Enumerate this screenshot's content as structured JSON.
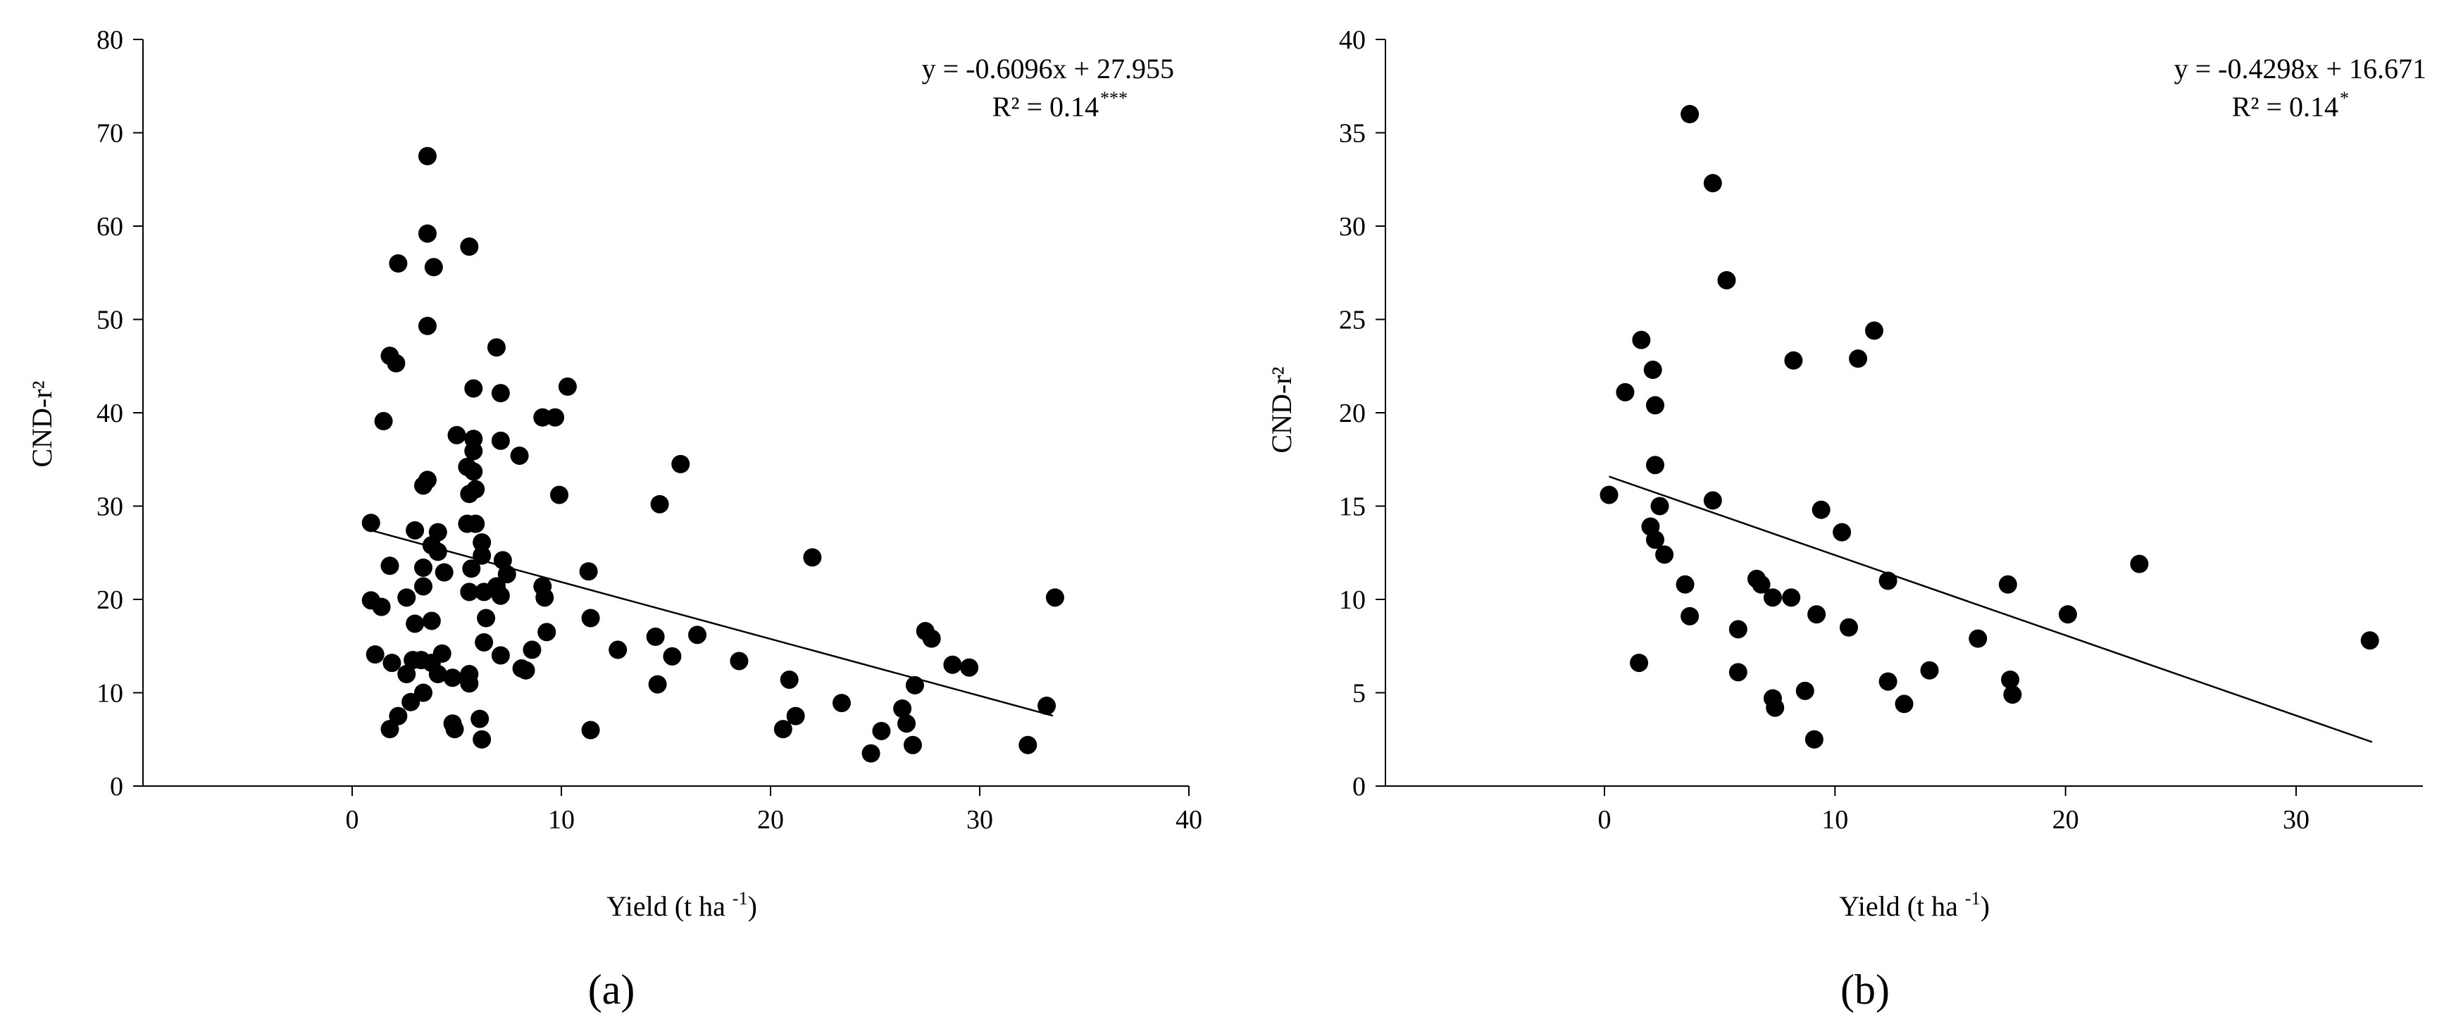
{
  "chart_data": [
    {
      "type": "scatter",
      "panel_label": "(a)",
      "xlabel": "Yield (t ha-1)",
      "ylabel": "CND-r²",
      "xlim": [
        -10,
        40
      ],
      "ylim": [
        0,
        80
      ],
      "xticks": [
        0,
        10,
        20,
        30,
        40
      ],
      "yticks": [
        0,
        10,
        20,
        30,
        40,
        50,
        60,
        70,
        80
      ],
      "equation": "y = -0.6096x + 27.955",
      "r2": "R² = 0.14",
      "r2_sig": "***",
      "trendline": {
        "slope": -0.6096,
        "intercept": 27.955,
        "x_range": [
          0.8,
          33.5
        ]
      },
      "points": [
        [
          3.6,
          67.5
        ],
        [
          3.6,
          59.2
        ],
        [
          5.6,
          57.8
        ],
        [
          2.2,
          56.0
        ],
        [
          3.9,
          55.6
        ],
        [
          3.6,
          49.3
        ],
        [
          6.9,
          47.0
        ],
        [
          1.8,
          46.1
        ],
        [
          2.1,
          45.3
        ],
        [
          5.8,
          42.6
        ],
        [
          7.1,
          42.1
        ],
        [
          10.3,
          42.8
        ],
        [
          9.1,
          39.5
        ],
        [
          9.7,
          39.5
        ],
        [
          1.5,
          39.1
        ],
        [
          5.0,
          37.6
        ],
        [
          5.8,
          37.2
        ],
        [
          7.1,
          37.0
        ],
        [
          5.8,
          35.9
        ],
        [
          8.0,
          35.4
        ],
        [
          15.7,
          34.5
        ],
        [
          5.5,
          34.2
        ],
        [
          5.8,
          33.7
        ],
        [
          3.6,
          32.8
        ],
        [
          3.4,
          32.2
        ],
        [
          5.9,
          31.8
        ],
        [
          5.6,
          31.3
        ],
        [
          9.9,
          31.2
        ],
        [
          14.7,
          30.2
        ],
        [
          0.9,
          28.2
        ],
        [
          5.5,
          28.1
        ],
        [
          5.9,
          28.1
        ],
        [
          3.0,
          27.4
        ],
        [
          4.1,
          27.2
        ],
        [
          6.2,
          26.1
        ],
        [
          3.8,
          25.8
        ],
        [
          4.1,
          25.1
        ],
        [
          6.2,
          24.7
        ],
        [
          7.2,
          24.2
        ],
        [
          22.0,
          24.5
        ],
        [
          1.8,
          23.6
        ],
        [
          3.4,
          23.4
        ],
        [
          5.7,
          23.3
        ],
        [
          4.4,
          22.9
        ],
        [
          7.4,
          22.7
        ],
        [
          11.3,
          23.0
        ],
        [
          9.1,
          21.4
        ],
        [
          6.9,
          21.4
        ],
        [
          3.4,
          21.4
        ],
        [
          6.3,
          20.8
        ],
        [
          5.6,
          20.8
        ],
        [
          7.1,
          20.4
        ],
        [
          2.6,
          20.2
        ],
        [
          9.2,
          20.2
        ],
        [
          33.6,
          20.2
        ],
        [
          0.9,
          19.9
        ],
        [
          1.4,
          19.2
        ],
        [
          6.4,
          18.0
        ],
        [
          11.4,
          18.0
        ],
        [
          3.8,
          17.7
        ],
        [
          3.0,
          17.4
        ],
        [
          27.4,
          16.6
        ],
        [
          9.3,
          16.5
        ],
        [
          16.5,
          16.2
        ],
        [
          27.7,
          15.8
        ],
        [
          6.3,
          15.4
        ],
        [
          14.5,
          16.0
        ],
        [
          12.7,
          14.6
        ],
        [
          8.6,
          14.6
        ],
        [
          1.1,
          14.1
        ],
        [
          4.3,
          14.2
        ],
        [
          7.1,
          14.0
        ],
        [
          15.3,
          13.9
        ],
        [
          3.3,
          13.5
        ],
        [
          2.9,
          13.5
        ],
        [
          3.8,
          13.2
        ],
        [
          1.9,
          13.2
        ],
        [
          18.5,
          13.4
        ],
        [
          28.7,
          13.0
        ],
        [
          29.5,
          12.7
        ],
        [
          8.1,
          12.6
        ],
        [
          8.3,
          12.4
        ],
        [
          4.1,
          12.0
        ],
        [
          2.6,
          12.0
        ],
        [
          5.6,
          12.0
        ],
        [
          4.8,
          11.6
        ],
        [
          20.9,
          11.4
        ],
        [
          5.6,
          11.0
        ],
        [
          26.9,
          10.8
        ],
        [
          14.6,
          10.9
        ],
        [
          3.4,
          10.0
        ],
        [
          2.8,
          9.0
        ],
        [
          33.2,
          8.6
        ],
        [
          23.4,
          8.9
        ],
        [
          26.3,
          8.3
        ],
        [
          21.2,
          7.5
        ],
        [
          2.2,
          7.5
        ],
        [
          6.1,
          7.2
        ],
        [
          4.8,
          6.7
        ],
        [
          26.5,
          6.7
        ],
        [
          1.8,
          6.1
        ],
        [
          20.6,
          6.1
        ],
        [
          11.4,
          6.0
        ],
        [
          25.3,
          5.9
        ],
        [
          4.9,
          6.1
        ],
        [
          6.2,
          5.0
        ],
        [
          26.8,
          4.4
        ],
        [
          32.3,
          4.4
        ],
        [
          24.8,
          3.5
        ]
      ]
    },
    {
      "type": "scatter",
      "panel_label": "(b)",
      "xlabel": "Yield (t ha-1)",
      "ylabel": "CND-r²",
      "xlim": [
        -9.5,
        35.5
      ],
      "ylim": [
        0,
        40
      ],
      "xticks": [
        0,
        10,
        20,
        30
      ],
      "yticks": [
        0,
        5,
        10,
        15,
        20,
        25,
        30,
        35,
        40
      ],
      "equation": "y = -0.4298x + 16.671",
      "r2": "R² = 0.14",
      "r2_sig": "*",
      "trendline": {
        "slope": -0.4298,
        "intercept": 16.671,
        "x_range": [
          0.2,
          33.3
        ]
      },
      "points": [
        [
          3.7,
          36.0
        ],
        [
          4.7,
          32.3
        ],
        [
          5.3,
          27.1
        ],
        [
          11.7,
          24.4
        ],
        [
          1.6,
          23.9
        ],
        [
          11.0,
          22.9
        ],
        [
          8.2,
          22.8
        ],
        [
          2.1,
          22.3
        ],
        [
          0.9,
          21.1
        ],
        [
          2.2,
          20.4
        ],
        [
          2.2,
          17.2
        ],
        [
          0.2,
          15.6
        ],
        [
          4.7,
          15.3
        ],
        [
          2.4,
          15.0
        ],
        [
          9.4,
          14.8
        ],
        [
          2.0,
          13.9
        ],
        [
          2.2,
          13.2
        ],
        [
          10.3,
          13.6
        ],
        [
          2.6,
          12.4
        ],
        [
          23.2,
          11.9
        ],
        [
          6.6,
          11.1
        ],
        [
          6.8,
          10.8
        ],
        [
          12.3,
          11.0
        ],
        [
          17.5,
          10.8
        ],
        [
          3.5,
          10.8
        ],
        [
          7.3,
          10.1
        ],
        [
          8.1,
          10.1
        ],
        [
          20.1,
          9.2
        ],
        [
          3.7,
          9.1
        ],
        [
          9.2,
          9.2
        ],
        [
          10.6,
          8.5
        ],
        [
          5.8,
          8.4
        ],
        [
          33.2,
          7.8
        ],
        [
          16.2,
          7.9
        ],
        [
          1.5,
          6.6
        ],
        [
          14.1,
          6.2
        ],
        [
          5.8,
          6.1
        ],
        [
          12.3,
          5.6
        ],
        [
          17.6,
          5.7
        ],
        [
          8.7,
          5.1
        ],
        [
          17.7,
          4.9
        ],
        [
          7.3,
          4.7
        ],
        [
          7.4,
          4.2
        ],
        [
          13.0,
          4.4
        ],
        [
          9.1,
          2.5
        ]
      ]
    }
  ]
}
